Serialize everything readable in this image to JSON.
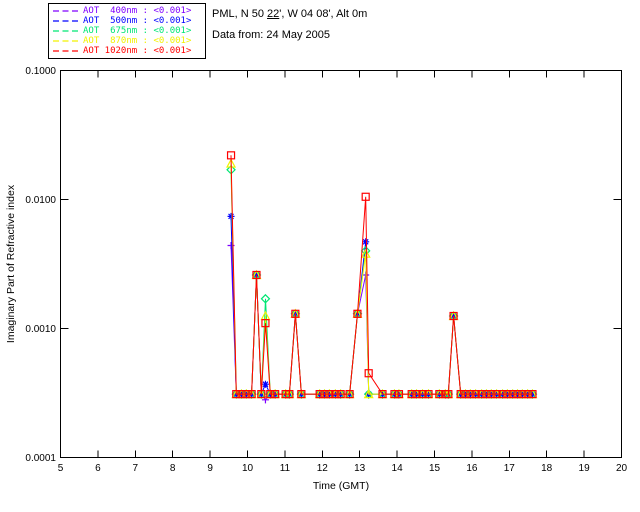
{
  "header": {
    "line1_prefix": "PML, N 50 ",
    "line1_underlined": "22",
    "line1_suffix": "', W 04 08', Alt 0m",
    "line2": "Data from: 24 May 2005"
  },
  "legend": {
    "entries": [
      {
        "label": "AOT  400nm : <0.001>",
        "color": "#7f00ff"
      },
      {
        "label": "AOT  500nm : <0.001>",
        "color": "#0000ff"
      },
      {
        "label": "AOT  675nm : <0.001>",
        "color": "#00e673"
      },
      {
        "label": "AOT  870nm : <0.001>",
        "color": "#f2f200"
      },
      {
        "label": "AOT 1020nm : <0.001>",
        "color": "#ff0000"
      }
    ]
  },
  "chart_data": {
    "type": "line",
    "xlabel": "Time (GMT)",
    "ylabel": "Imaginary Part of Refractive index",
    "x_axis": {
      "min": 5,
      "max": 20,
      "scale": "linear"
    },
    "y_axis": {
      "min": 0.0001,
      "max": 0.1,
      "scale": "log"
    },
    "x_ticks": [
      5,
      6,
      7,
      8,
      9,
      10,
      11,
      12,
      13,
      14,
      15,
      16,
      17,
      18,
      19,
      20
    ],
    "y_ticks": [
      {
        "value": 0.1,
        "label": "0.1000"
      },
      {
        "value": 0.01,
        "label": "0.0100"
      },
      {
        "value": 0.001,
        "label": "0.0010"
      },
      {
        "value": 0.0001,
        "label": "0.0001"
      }
    ],
    "x": [
      9.56,
      9.7,
      9.84,
      9.97,
      10.11,
      10.24,
      10.37,
      10.48,
      10.61,
      10.74,
      11.02,
      11.12,
      11.28,
      11.44,
      11.93,
      12.06,
      12.19,
      12.35,
      12.49,
      12.73,
      12.94,
      13.16,
      13.24,
      13.61,
      13.93,
      14.05,
      14.39,
      14.52,
      14.68,
      14.84,
      15.13,
      15.29,
      15.37,
      15.51,
      15.7,
      15.83,
      15.96,
      16.1,
      16.26,
      16.39,
      16.52,
      16.66,
      16.82,
      16.95,
      17.09,
      17.22,
      17.35,
      17.49,
      17.62
    ],
    "series": [
      {
        "name": "AOT 400nm",
        "color": "#7f00ff",
        "marker": "plus",
        "values": [
          0.0044,
          0.00031,
          0.00031,
          0.00031,
          0.00031,
          0.0026,
          0.00031,
          0.00028,
          0.00031,
          0.00031,
          0.00031,
          0.00031,
          0.0013,
          0.00031,
          0.00031,
          0.00031,
          0.00031,
          0.00031,
          0.00031,
          0.00031,
          0.0013,
          0.0026,
          0.00031,
          0.00031,
          0.00031,
          0.00031,
          0.00031,
          0.00031,
          0.00031,
          0.00031,
          0.00031,
          0.00031,
          0.00031,
          0.00125,
          0.00031,
          0.00031,
          0.00031,
          0.00031,
          0.00031,
          0.00031,
          0.00031,
          0.00031,
          0.00031,
          0.00031,
          0.00031,
          0.00031,
          0.00031,
          0.00031,
          0.00031
        ]
      },
      {
        "name": "AOT 500nm",
        "color": "#0000ff",
        "marker": "asterisk",
        "values": [
          0.0074,
          0.00031,
          0.00031,
          0.00031,
          0.00031,
          0.0026,
          0.00031,
          0.00037,
          0.00031,
          0.00031,
          0.00031,
          0.00031,
          0.0013,
          0.00031,
          0.00031,
          0.00031,
          0.00031,
          0.00031,
          0.00031,
          0.00031,
          0.0013,
          0.0047,
          0.00031,
          0.00031,
          0.00031,
          0.00031,
          0.00031,
          0.00031,
          0.00031,
          0.00031,
          0.00031,
          0.00031,
          0.00031,
          0.00125,
          0.00031,
          0.00031,
          0.00031,
          0.00031,
          0.00031,
          0.00031,
          0.00031,
          0.00031,
          0.00031,
          0.00031,
          0.00031,
          0.00031,
          0.00031,
          0.00031,
          0.00031
        ]
      },
      {
        "name": "AOT 675nm",
        "color": "#00e673",
        "marker": "diamond",
        "values": [
          0.017,
          0.00031,
          0.00031,
          0.00031,
          0.00031,
          0.0026,
          0.00031,
          0.0017,
          0.00031,
          0.00031,
          0.00031,
          0.00031,
          0.0013,
          0.00031,
          0.00031,
          0.00031,
          0.00031,
          0.00031,
          0.00031,
          0.00031,
          0.0013,
          0.004,
          0.00031,
          0.00031,
          0.00031,
          0.00031,
          0.00031,
          0.00031,
          0.00031,
          0.00031,
          0.00031,
          0.00031,
          0.00031,
          0.00125,
          0.00031,
          0.00031,
          0.00031,
          0.00031,
          0.00031,
          0.00031,
          0.00031,
          0.00031,
          0.00031,
          0.00031,
          0.00031,
          0.00031,
          0.00031,
          0.00031,
          0.00031
        ]
      },
      {
        "name": "AOT 870nm",
        "color": "#f2f200",
        "marker": "triangle",
        "values": [
          0.019,
          0.00031,
          0.00031,
          0.00031,
          0.00031,
          0.0026,
          0.00031,
          0.00125,
          0.00031,
          0.00031,
          0.00031,
          0.00031,
          0.0013,
          0.00031,
          0.00031,
          0.00031,
          0.00031,
          0.00031,
          0.00031,
          0.00031,
          0.0013,
          0.0038,
          0.00031,
          0.00031,
          0.00031,
          0.00031,
          0.00031,
          0.00031,
          0.00031,
          0.00031,
          0.00031,
          0.00031,
          0.00031,
          0.00125,
          0.00031,
          0.00031,
          0.00031,
          0.00031,
          0.00031,
          0.00031,
          0.00031,
          0.00031,
          0.00031,
          0.00031,
          0.00031,
          0.00031,
          0.00031,
          0.00031,
          0.00031
        ]
      },
      {
        "name": "AOT 1020nm",
        "color": "#ff0000",
        "marker": "square",
        "values": [
          0.022,
          0.00031,
          0.00031,
          0.00031,
          0.00031,
          0.0026,
          0.00031,
          0.0011,
          0.00031,
          0.00031,
          0.00031,
          0.00031,
          0.0013,
          0.00031,
          0.00031,
          0.00031,
          0.00031,
          0.00031,
          0.00031,
          0.00031,
          0.0013,
          0.0105,
          0.00045,
          0.00031,
          0.00031,
          0.00031,
          0.00031,
          0.00031,
          0.00031,
          0.00031,
          0.00031,
          0.00031,
          0.00031,
          0.00125,
          0.00031,
          0.00031,
          0.00031,
          0.00031,
          0.00031,
          0.00031,
          0.00031,
          0.00031,
          0.00031,
          0.00031,
          0.00031,
          0.00031,
          0.00031,
          0.00031,
          0.00031
        ]
      }
    ],
    "legend_position": "top-left-outside",
    "grid": false
  }
}
